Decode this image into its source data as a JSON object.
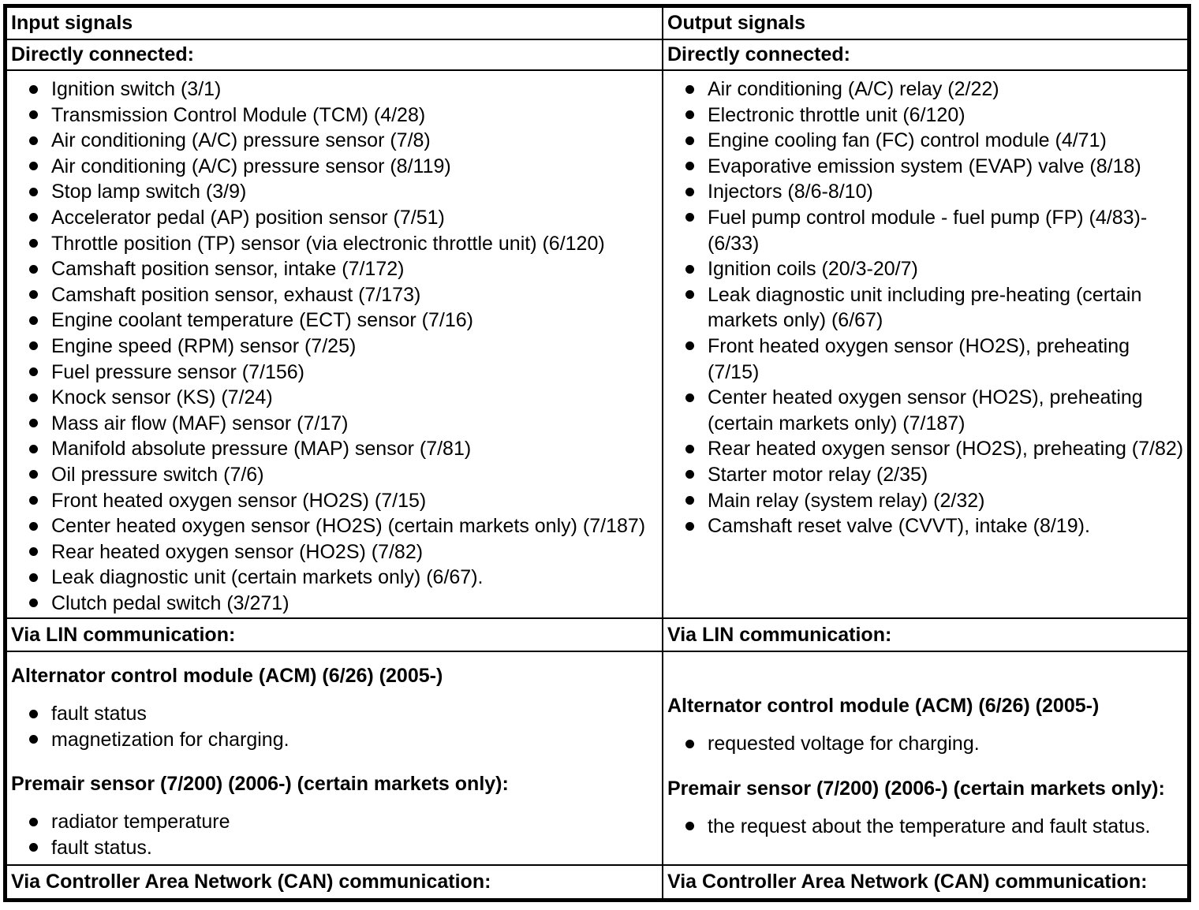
{
  "colors": {
    "border": "#000000",
    "text": "#000000",
    "background": "#ffffff"
  },
  "input": {
    "header": "Input signals",
    "directly_connected_label": "Directly connected:",
    "directly_connected_items": [
      "Ignition switch (3/1)",
      "Transmission Control Module (TCM) (4/28)",
      "Air conditioning (A/C) pressure sensor (7/8)",
      "Air conditioning (A/C) pressure sensor (8/119)",
      "Stop lamp switch (3/9)",
      "Accelerator pedal (AP) position sensor (7/51)",
      "Throttle position (TP) sensor (via electronic throttle unit) (6/120)",
      "Camshaft position sensor, intake (7/172)",
      "Camshaft position sensor, exhaust (7/173)",
      "Engine coolant temperature (ECT) sensor (7/16)",
      "Engine speed (RPM) sensor (7/25)",
      "Fuel pressure sensor (7/156)",
      "Knock sensor (KS) (7/24)",
      "Mass air flow (MAF) sensor (7/17)",
      "Manifold absolute pressure (MAP) sensor (7/81)",
      "Oil pressure switch (7/6)",
      "Front heated oxygen sensor (HO2S) (7/15)",
      "Center heated oxygen sensor (HO2S) (certain markets only) (7/187)",
      "Rear heated oxygen sensor (HO2S) (7/82)",
      "Leak diagnostic unit (certain markets only) (6/67).",
      "Clutch pedal switch (3/271)"
    ],
    "via_lin_label": "Via LIN communication:",
    "lin_sections": [
      {
        "heading": "Alternator control module (ACM) (6/26) (2005-)",
        "items": [
          "fault status",
          "magnetization for charging."
        ]
      },
      {
        "heading": "Premair sensor (7/200) (2006-) (certain markets only):",
        "items": [
          "radiator temperature",
          "fault status."
        ]
      }
    ],
    "via_can_label": "Via Controller Area Network (CAN) communication:"
  },
  "output": {
    "header": "Output signals",
    "directly_connected_label": "Directly connected:",
    "directly_connected_items": [
      "Air conditioning (A/C) relay (2/22)",
      "Electronic throttle unit (6/120)",
      "Engine cooling fan (FC) control module (4/71)",
      "Evaporative emission system (EVAP) valve (8/18)",
      "Injectors (8/6-8/10)",
      "Fuel pump control module - fuel pump (FP) (4/83)-(6/33)",
      "Ignition coils (20/3-20/7)",
      "Leak diagnostic unit including pre-heating (certain markets only) (6/67)",
      "Front heated oxygen sensor (HO2S), preheating (7/15)",
      "Center heated oxygen sensor (HO2S), preheating (certain markets only) (7/187)",
      "Rear heated oxygen sensor (HO2S), preheating (7/82)",
      "Starter motor relay (2/35)",
      "Main relay (system relay) (2/32)",
      "Camshaft reset valve (CVVT), intake (8/19)."
    ],
    "via_lin_label": "Via LIN communication:",
    "lin_sections": [
      {
        "heading": "Alternator control module (ACM) (6/26) (2005-)",
        "items": [
          "requested voltage for charging."
        ]
      },
      {
        "heading": "Premair sensor (7/200) (2006-) (certain markets only):",
        "items": [
          "the request about the temperature and fault status."
        ]
      }
    ],
    "via_can_label": "Via Controller Area Network (CAN) communication:"
  }
}
